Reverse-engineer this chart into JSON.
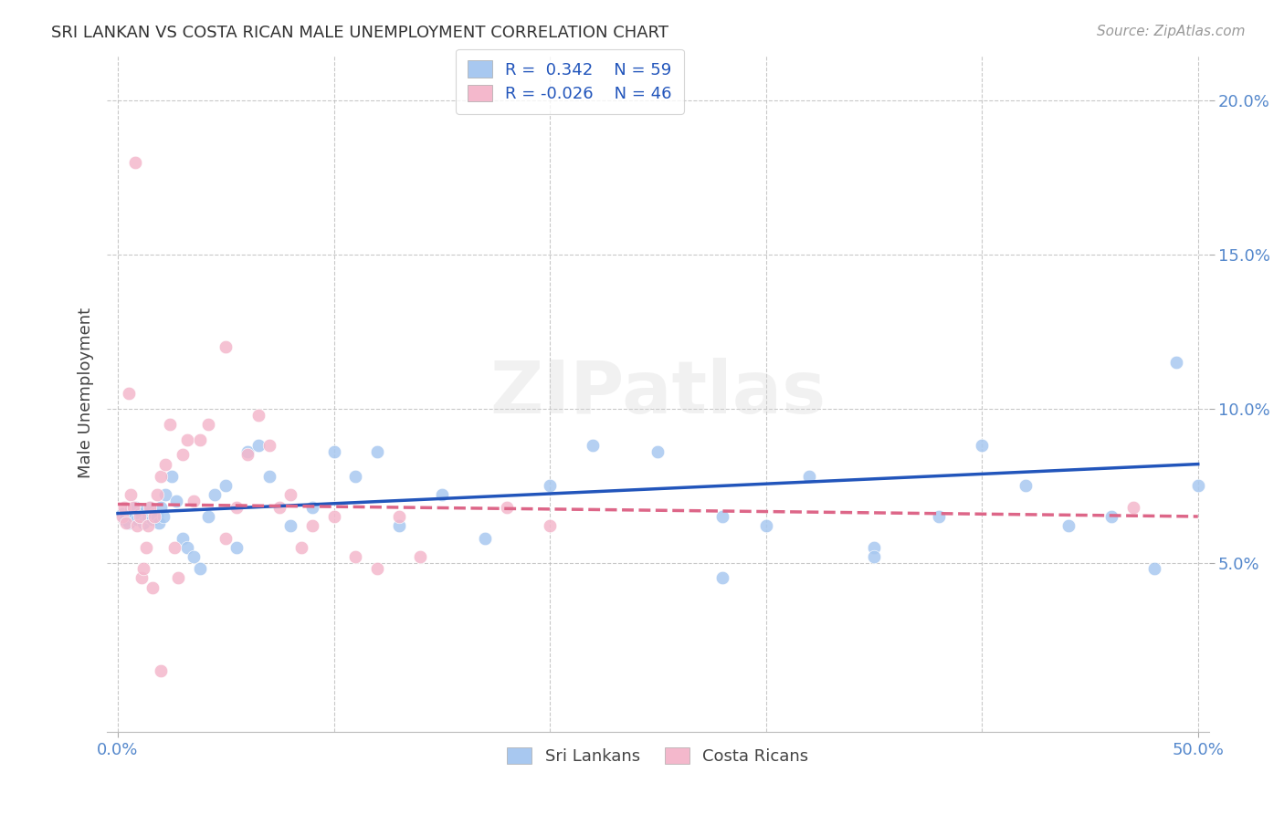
{
  "title": "SRI LANKAN VS COSTA RICAN MALE UNEMPLOYMENT CORRELATION CHART",
  "source": "Source: ZipAtlas.com",
  "ylabel": "Male Unemployment",
  "legend_labels": [
    "Sri Lankans",
    "Costa Ricans"
  ],
  "legend_R": [
    "0.342",
    "-0.026"
  ],
  "legend_N": [
    "59",
    "46"
  ],
  "blue_color": "#a8c8f0",
  "pink_color": "#f4b8cc",
  "blue_line_color": "#2255bb",
  "pink_line_color": "#dd6688",
  "background_color": "#ffffff",
  "grid_color": "#bbbbbb",
  "title_color": "#333333",
  "axis_tick_color": "#5588cc",
  "watermark": "ZIPatlas",
  "xlim": [
    -0.005,
    0.505
  ],
  "ylim": [
    -0.005,
    0.215
  ],
  "xtick_positions": [
    0.0,
    0.5
  ],
  "xtick_labels": [
    "0.0%",
    "50.0%"
  ],
  "ytick_positions": [
    0.05,
    0.1,
    0.15,
    0.2
  ],
  "ytick_labels": [
    "5.0%",
    "10.0%",
    "15.0%",
    "20.0%"
  ],
  "sri_lankans_x": [
    0.002,
    0.003,
    0.004,
    0.005,
    0.006,
    0.007,
    0.008,
    0.009,
    0.01,
    0.011,
    0.012,
    0.013,
    0.014,
    0.015,
    0.016,
    0.017,
    0.018,
    0.019,
    0.02,
    0.021,
    0.022,
    0.025,
    0.027,
    0.03,
    0.032,
    0.035,
    0.038,
    0.042,
    0.045,
    0.05,
    0.055,
    0.06,
    0.065,
    0.07,
    0.08,
    0.09,
    0.1,
    0.11,
    0.12,
    0.13,
    0.15,
    0.17,
    0.2,
    0.22,
    0.25,
    0.28,
    0.3,
    0.32,
    0.35,
    0.38,
    0.4,
    0.42,
    0.44,
    0.46,
    0.48,
    0.49,
    0.5,
    0.35,
    0.28
  ],
  "sri_lankans_y": [
    0.066,
    0.064,
    0.065,
    0.063,
    0.067,
    0.065,
    0.068,
    0.064,
    0.066,
    0.065,
    0.063,
    0.067,
    0.065,
    0.068,
    0.064,
    0.066,
    0.065,
    0.063,
    0.068,
    0.065,
    0.072,
    0.078,
    0.07,
    0.058,
    0.055,
    0.052,
    0.048,
    0.065,
    0.072,
    0.075,
    0.055,
    0.086,
    0.088,
    0.078,
    0.062,
    0.068,
    0.086,
    0.078,
    0.086,
    0.062,
    0.072,
    0.058,
    0.075,
    0.088,
    0.086,
    0.065,
    0.062,
    0.078,
    0.055,
    0.065,
    0.088,
    0.075,
    0.062,
    0.065,
    0.048,
    0.115,
    0.075,
    0.052,
    0.045
  ],
  "costa_ricans_x": [
    0.002,
    0.003,
    0.004,
    0.005,
    0.006,
    0.007,
    0.008,
    0.009,
    0.01,
    0.011,
    0.012,
    0.013,
    0.014,
    0.015,
    0.016,
    0.017,
    0.018,
    0.02,
    0.022,
    0.024,
    0.026,
    0.028,
    0.03,
    0.032,
    0.035,
    0.038,
    0.042,
    0.05,
    0.055,
    0.06,
    0.065,
    0.07,
    0.075,
    0.08,
    0.085,
    0.09,
    0.1,
    0.11,
    0.12,
    0.13,
    0.14,
    0.18,
    0.2,
    0.05,
    0.47,
    0.02
  ],
  "costa_ricans_y": [
    0.065,
    0.068,
    0.063,
    0.105,
    0.072,
    0.068,
    0.18,
    0.062,
    0.065,
    0.045,
    0.048,
    0.055,
    0.062,
    0.068,
    0.042,
    0.065,
    0.072,
    0.078,
    0.082,
    0.095,
    0.055,
    0.045,
    0.085,
    0.09,
    0.07,
    0.09,
    0.095,
    0.058,
    0.068,
    0.085,
    0.098,
    0.088,
    0.068,
    0.072,
    0.055,
    0.062,
    0.065,
    0.052,
    0.048,
    0.065,
    0.052,
    0.068,
    0.062,
    0.12,
    0.068,
    0.015
  ],
  "sl_trend_x0": 0.0,
  "sl_trend_y0": 0.066,
  "sl_trend_x1": 0.5,
  "sl_trend_y1": 0.082,
  "cr_trend_x0": 0.0,
  "cr_trend_y0": 0.069,
  "cr_trend_x1": 0.5,
  "cr_trend_y1": 0.065
}
